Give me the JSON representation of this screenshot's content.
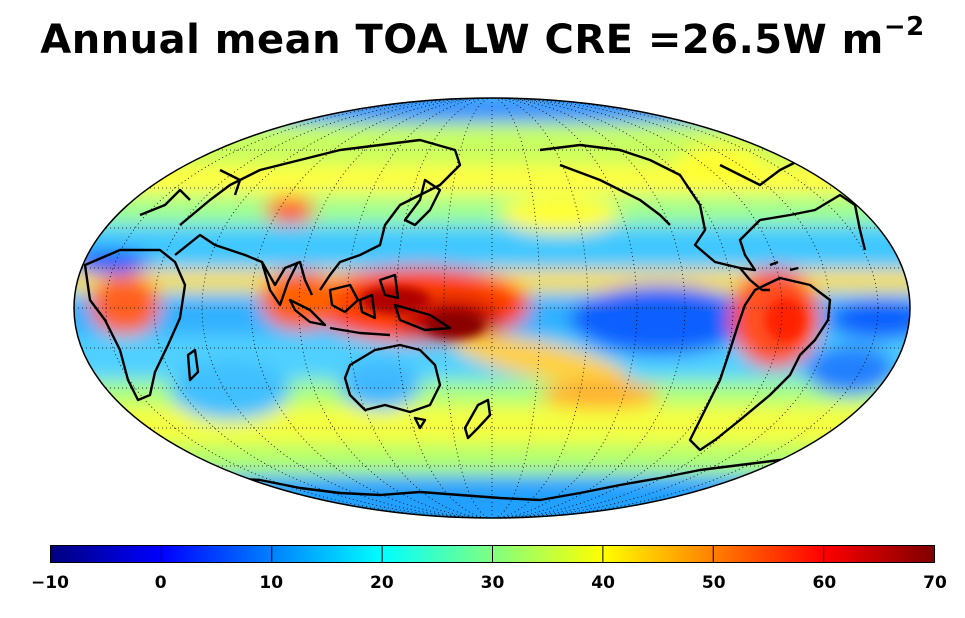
{
  "title": {
    "main": "Annual mean TOA LW CRE =26.5W m",
    "superscript": "−2"
  },
  "colorbar": {
    "min": -10,
    "max": 70,
    "tick_labels": [
      "−10",
      "0",
      "10",
      "20",
      "30",
      "40",
      "50",
      "60",
      "70"
    ],
    "colors": [
      "#00007f",
      "#0000ff",
      "#0080ff",
      "#00ffff",
      "#80ff80",
      "#ffff00",
      "#ff8000",
      "#ff0000",
      "#7f0000"
    ]
  },
  "map": {
    "projection": "mollweide",
    "center_longitude": "180",
    "coastlines": true,
    "graticule": "dotted"
  }
}
